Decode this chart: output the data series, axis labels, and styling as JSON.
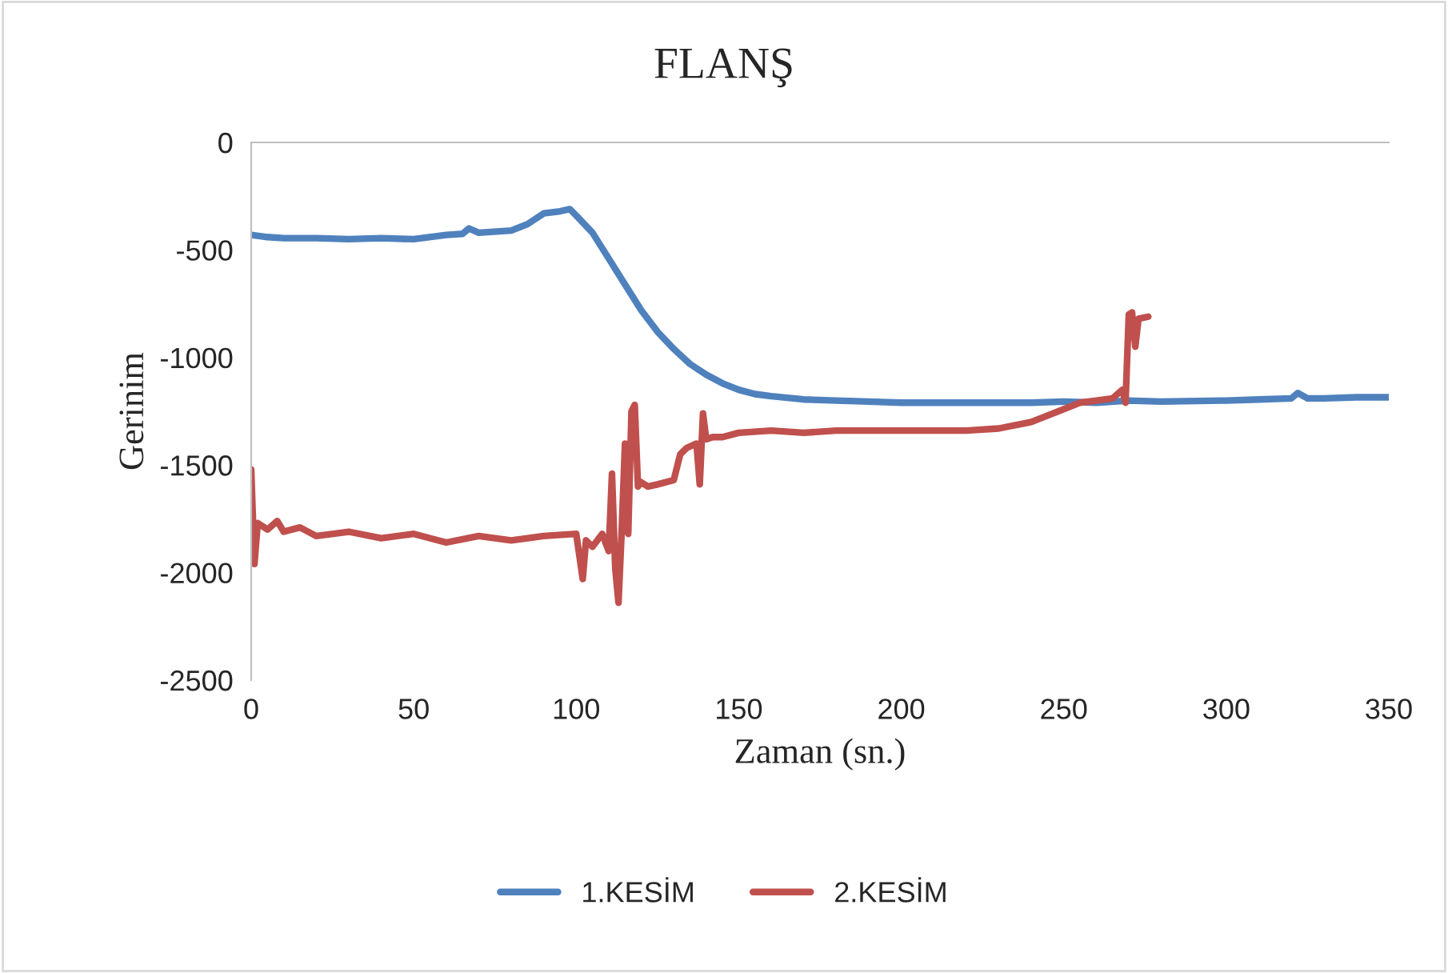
{
  "chart_data": {
    "type": "line",
    "title": "FLANŞ",
    "xlabel": "Zaman (sn.)",
    "ylabel": "Gerinim",
    "xlim": [
      0,
      350
    ],
    "xticks": [
      0,
      50,
      100,
      150,
      200,
      250,
      300,
      350
    ],
    "ylim": [
      -2500,
      0
    ],
    "yticks": [
      -2500,
      -2000,
      -1500,
      -1000,
      -500,
      0
    ],
    "grid": false,
    "legend": "bottom",
    "marker": "none",
    "line_style": "solid",
    "series": [
      {
        "name": "1.KESİM",
        "color": "#4f81bd",
        "x": [
          0,
          5,
          10,
          20,
          30,
          40,
          50,
          60,
          65,
          67,
          70,
          80,
          85,
          90,
          95,
          98,
          100,
          105,
          110,
          115,
          120,
          125,
          130,
          135,
          140,
          145,
          150,
          155,
          160,
          170,
          180,
          190,
          200,
          220,
          240,
          250,
          260,
          270,
          280,
          300,
          310,
          320,
          322,
          325,
          330,
          340,
          350
        ],
        "values": [
          -430,
          -440,
          -445,
          -445,
          -450,
          -445,
          -450,
          -430,
          -425,
          -400,
          -420,
          -410,
          -380,
          -330,
          -320,
          -310,
          -340,
          -420,
          -540,
          -660,
          -780,
          -880,
          -960,
          -1030,
          -1080,
          -1120,
          -1150,
          -1170,
          -1180,
          -1195,
          -1200,
          -1205,
          -1210,
          -1210,
          -1210,
          -1205,
          -1210,
          -1200,
          -1205,
          -1200,
          -1195,
          -1190,
          -1165,
          -1190,
          -1190,
          -1185,
          -1185
        ]
      },
      {
        "name": "2.KESİM",
        "color": "#c0504d",
        "x": [
          0,
          1,
          2,
          5,
          8,
          10,
          15,
          20,
          30,
          40,
          50,
          60,
          70,
          80,
          90,
          100,
          102,
          103,
          105,
          108,
          110,
          111,
          112,
          113,
          114,
          115,
          116,
          117,
          118,
          119,
          120,
          122,
          125,
          130,
          132,
          134,
          137,
          138,
          139,
          140,
          142,
          145,
          150,
          160,
          170,
          180,
          200,
          220,
          230,
          240,
          250,
          255,
          260,
          265,
          268,
          269,
          270,
          271,
          272,
          273,
          276
        ],
        "values": [
          -1520,
          -1960,
          -1770,
          -1800,
          -1760,
          -1810,
          -1790,
          -1830,
          -1810,
          -1840,
          -1820,
          -1860,
          -1830,
          -1850,
          -1830,
          -1820,
          -2030,
          -1850,
          -1880,
          -1820,
          -1900,
          -1540,
          -1980,
          -2140,
          -1800,
          -1400,
          -1820,
          -1250,
          -1220,
          -1600,
          -1580,
          -1600,
          -1590,
          -1570,
          -1450,
          -1420,
          -1400,
          -1590,
          -1260,
          -1380,
          -1370,
          -1370,
          -1350,
          -1340,
          -1350,
          -1340,
          -1340,
          -1340,
          -1330,
          -1300,
          -1240,
          -1210,
          -1200,
          -1190,
          -1150,
          -1210,
          -800,
          -790,
          -950,
          -820,
          -810
        ]
      }
    ]
  }
}
